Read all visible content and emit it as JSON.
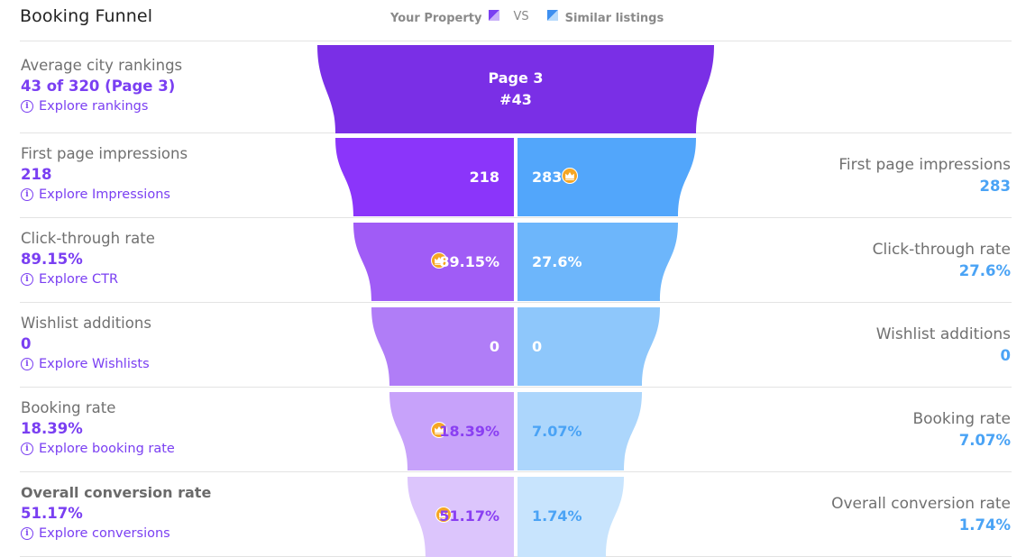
{
  "header": {
    "title": "Booking Funnel",
    "legend_property": "Your Property",
    "legend_vs": "VS",
    "legend_similar": "Similar listings"
  },
  "colors": {
    "property_accent": "#7a3ff2",
    "similar_accent": "#4aa3f5",
    "crown": "#f4a21a"
  },
  "ranking": {
    "label": "Average city rankings",
    "value": "43 of 320 (Page 3)",
    "explore": "Explore rankings",
    "funnel_line1": "Page 3",
    "funnel_line2": "#43"
  },
  "rows": [
    {
      "label": "First page impressions",
      "property_value": "218",
      "similar_value": "283",
      "explore": "Explore Impressions",
      "crown_on": "similar"
    },
    {
      "label": "Click-through rate",
      "property_value": "89.15%",
      "similar_value": "27.6%",
      "explore": "Explore CTR",
      "crown_on": "property"
    },
    {
      "label": "Wishlist additions",
      "property_value": "0",
      "similar_value": "0",
      "explore": "Explore Wishlists",
      "crown_on": "none"
    },
    {
      "label": "Booking rate",
      "property_value": "18.39%",
      "similar_value": "7.07%",
      "explore": "Explore booking rate",
      "crown_on": "property"
    },
    {
      "label": "Overall conversion rate",
      "property_value": "51.17%",
      "similar_value": "1.74%",
      "explore": "Explore conversions",
      "crown_on": "property"
    }
  ]
}
